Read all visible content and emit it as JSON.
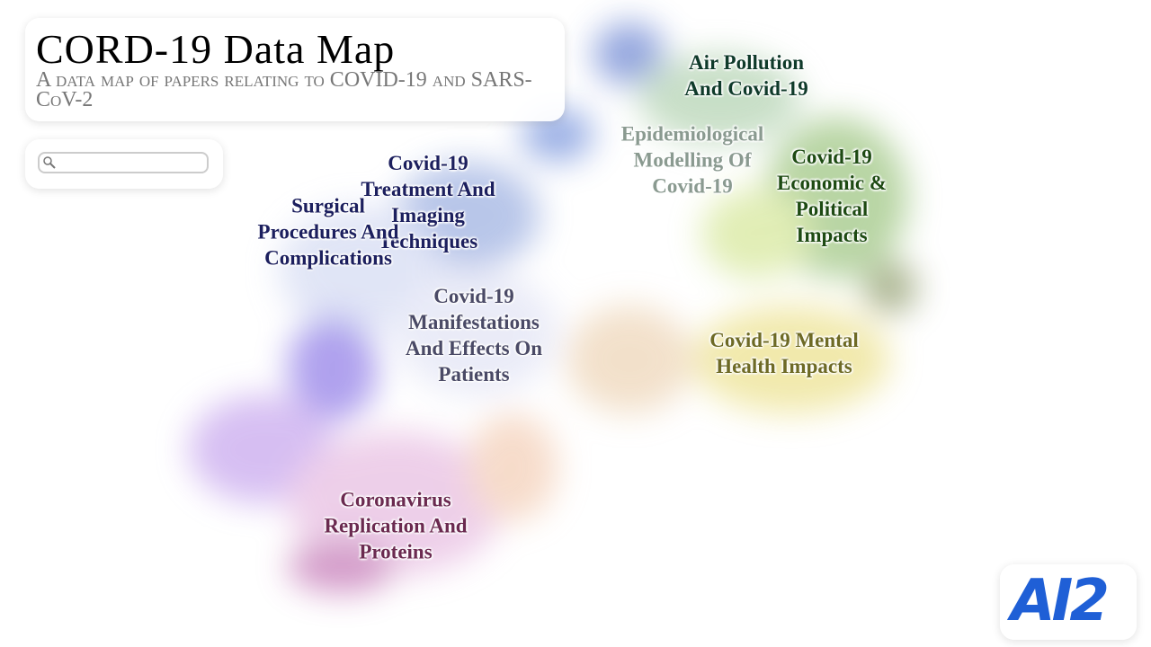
{
  "header": {
    "title": "CORD-19 Data Map",
    "subtitle": "A data map of papers relating to COVID-19 and SARS-CoV-2"
  },
  "clusters": [
    {
      "lines": [
        "Air Pollution",
        "And Covid-19"
      ]
    },
    {
      "lines": [
        "Epidemiological",
        "Modelling Of",
        "Covid-19"
      ]
    },
    {
      "lines": [
        "Covid-19",
        "Economic &",
        "Political",
        "Impacts"
      ]
    },
    {
      "lines": [
        "Covid-19",
        "Treatment And",
        "Imaging",
        "Techniques"
      ]
    },
    {
      "lines": [
        "Surgical",
        "Procedures And",
        "Complications"
      ]
    },
    {
      "lines": [
        "Covid-19",
        "Manifestations",
        "And Effects On",
        "Patients"
      ]
    },
    {
      "lines": [
        "Covid-19 Mental",
        "Health Impacts"
      ]
    },
    {
      "lines": [
        "Coronavirus",
        "Replication And",
        "Proteins"
      ]
    }
  ],
  "logo": {
    "text": "AI2"
  }
}
